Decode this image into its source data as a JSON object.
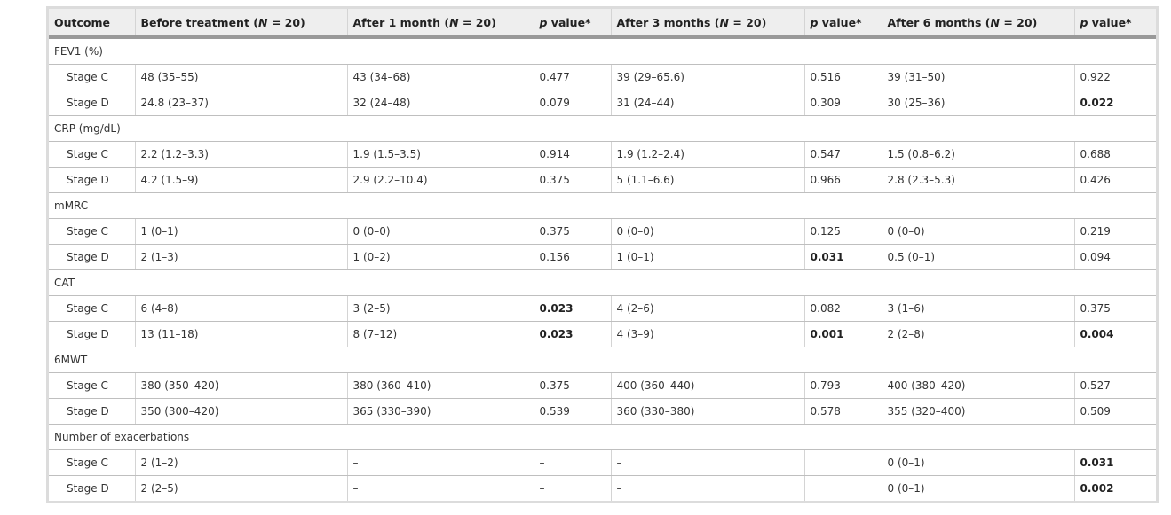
{
  "table": {
    "headers": [
      {
        "pre": "Outcome",
        "ital": "",
        "post": ""
      },
      {
        "pre": "Before treatment (",
        "ital": "N",
        "post": " = 20)"
      },
      {
        "pre": "After 1 month (",
        "ital": "N",
        "post": " = 20)"
      },
      {
        "pre": "",
        "ital": "p",
        "post": " value*"
      },
      {
        "pre": "After 3 months (",
        "ital": "N",
        "post": " = 20)"
      },
      {
        "pre": "",
        "ital": "p",
        "post": " value*"
      },
      {
        "pre": "After 6 months (",
        "ital": "N",
        "post": " = 20)"
      },
      {
        "pre": "",
        "ital": "p",
        "post": " value*"
      }
    ],
    "groups": [
      {
        "label": "FEV1 (%)",
        "rows": [
          {
            "cells": [
              "Stage C",
              "48 (35–55)",
              "43 (34–68)",
              "0.477",
              "39 (29–65.6)",
              "0.516",
              "39 (31–50)",
              "0.922"
            ],
            "bold": []
          },
          {
            "cells": [
              "Stage D",
              "24.8 (23–37)",
              "32 (24–48)",
              "0.079",
              "31 (24–44)",
              "0.309",
              "30 (25–36)",
              "0.022"
            ],
            "bold": [
              7
            ]
          }
        ]
      },
      {
        "label": "CRP (mg/dL)",
        "rows": [
          {
            "cells": [
              "Stage C",
              "2.2 (1.2–3.3)",
              "1.9 (1.5–3.5)",
              "0.914",
              "1.9 (1.2–2.4)",
              "0.547",
              "1.5 (0.8–6.2)",
              "0.688"
            ],
            "bold": []
          },
          {
            "cells": [
              "Stage D",
              "4.2 (1.5–9)",
              "2.9 (2.2–10.4)",
              "0.375",
              "5 (1.1–6.6)",
              "0.966",
              "2.8 (2.3–5.3)",
              "0.426"
            ],
            "bold": []
          }
        ]
      },
      {
        "label": "mMRC",
        "rows": [
          {
            "cells": [
              "Stage C",
              "1 (0–1)",
              "0 (0–0)",
              "0.375",
              "0 (0–0)",
              "0.125",
              "0 (0–0)",
              "0.219"
            ],
            "bold": []
          },
          {
            "cells": [
              "Stage D",
              "2 (1–3)",
              "1 (0–2)",
              "0.156",
              "1 (0–1)",
              "0.031",
              "0.5 (0–1)",
              "0.094"
            ],
            "bold": [
              5
            ]
          }
        ]
      },
      {
        "label": "CAT",
        "rows": [
          {
            "cells": [
              "Stage C",
              "6 (4–8)",
              "3 (2–5)",
              "0.023",
              "4 (2–6)",
              "0.082",
              "3 (1–6)",
              "0.375"
            ],
            "bold": [
              3
            ]
          },
          {
            "cells": [
              "Stage D",
              "13 (11–18)",
              "8 (7–12)",
              "0.023",
              "4 (3–9)",
              "0.001",
              "2 (2–8)",
              "0.004"
            ],
            "bold": [
              3,
              5,
              7
            ]
          }
        ]
      },
      {
        "label": "6MWT",
        "rows": [
          {
            "cells": [
              "Stage C",
              "380 (350–420)",
              "380 (360–410)",
              "0.375",
              "400 (360–440)",
              "0.793",
              "400 (380–420)",
              "0.527"
            ],
            "bold": []
          },
          {
            "cells": [
              "Stage D",
              "350 (300–420)",
              "365 (330–390)",
              "0.539",
              "360 (330–380)",
              "0.578",
              "355 (320–400)",
              "0.509"
            ],
            "bold": []
          }
        ]
      },
      {
        "label": "Number of exacerbations",
        "rows": [
          {
            "cells": [
              "Stage C",
              "2 (1–2)",
              "–",
              "–",
              "–",
              "",
              "0 (0–1)",
              "0.031"
            ],
            "bold": [
              7
            ]
          },
          {
            "cells": [
              "Stage D",
              "2 (2–5)",
              "–",
              "–",
              "–",
              "",
              "0 (0–1)",
              "0.002"
            ],
            "bold": [
              7
            ]
          }
        ]
      }
    ]
  }
}
